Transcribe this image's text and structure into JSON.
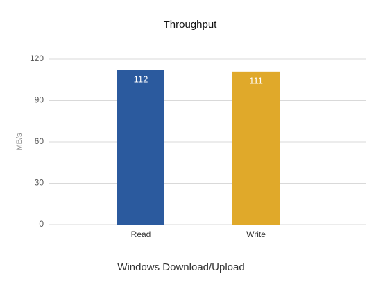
{
  "chart_data": {
    "type": "bar",
    "title": "Throughput",
    "x_axis_label": "Windows Download/Upload",
    "y_axis_label": "MB/s",
    "categories": [
      "Read",
      "Write"
    ],
    "values": [
      112,
      111
    ],
    "colors": [
      "#2b5a9e",
      "#e0a92a"
    ],
    "ylim": [
      0,
      120
    ],
    "yticks": [
      0,
      30,
      60,
      90,
      120
    ],
    "grid": true
  }
}
